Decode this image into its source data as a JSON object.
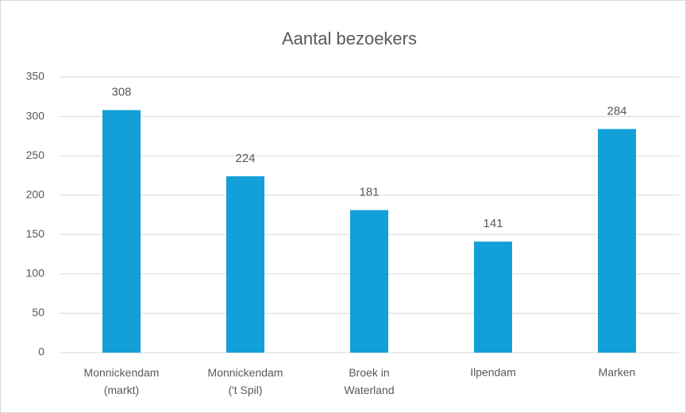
{
  "chart_data": {
    "type": "bar",
    "title": "Aantal bezoekers",
    "categories": [
      "Monnickendam\n(markt)",
      "Monnickendam\n('t Spil)",
      "Broek in\nWaterland",
      "Ilpendam",
      "Marken"
    ],
    "values": [
      308,
      224,
      181,
      141,
      284
    ],
    "color": "#139fd8",
    "ylim": [
      0,
      350
    ],
    "yticks": [
      0,
      50,
      100,
      150,
      200,
      250,
      300,
      350
    ],
    "grid": true,
    "data_labels": true
  }
}
